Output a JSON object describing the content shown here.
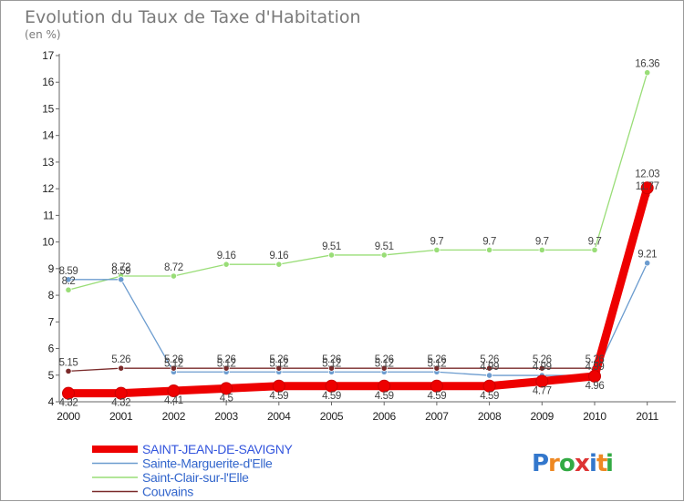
{
  "chart_data": {
    "type": "line",
    "title": "Evolution du Taux de Taxe d'Habitation",
    "subtitle": "(en %)",
    "xlabel": "",
    "ylabel": "",
    "x": [
      "2000",
      "2001",
      "2002",
      "2003",
      "2004",
      "2005",
      "2006",
      "2007",
      "2008",
      "2009",
      "2010",
      "2011"
    ],
    "ylim": [
      4,
      17
    ],
    "yticks": [
      "4",
      "5",
      "6",
      "7",
      "8",
      "9",
      "10",
      "11",
      "12",
      "13",
      "14",
      "15",
      "16",
      "17"
    ],
    "grid": false,
    "legend_position": "bottom-left",
    "series": [
      {
        "name": "SAINT-JEAN-DE-SAVIGNY",
        "color": "#ee0000",
        "values": [
          4.32,
          4.32,
          4.41,
          4.5,
          4.59,
          4.59,
          4.59,
          4.59,
          4.59,
          4.77,
          4.96,
          12.03
        ],
        "labels": [
          "4.32",
          "4.32",
          "4.41",
          "4.5",
          "4.59",
          "4.59",
          "4.59",
          "4.59",
          "4.59",
          "4.77",
          "4.96",
          "12.03"
        ]
      },
      {
        "name": "Sainte-Marguerite-d'Elle",
        "color": "#6c9ccf",
        "values": [
          8.59,
          8.59,
          5.12,
          5.12,
          5.12,
          5.12,
          5.12,
          5.12,
          4.99,
          4.99,
          4.99,
          9.21
        ],
        "labels": [
          "8.59",
          "8.59",
          "5.12",
          "5.12",
          "5.12",
          "5.12",
          "5.12",
          "5.12",
          "4.99",
          "4.99",
          "4.99",
          "9.21"
        ]
      },
      {
        "name": "Saint-Clair-sur-l'Elle",
        "color": "#99dd77",
        "values": [
          8.2,
          8.72,
          8.72,
          9.16,
          9.16,
          9.51,
          9.51,
          9.7,
          9.7,
          9.7,
          9.7,
          16.36
        ],
        "labels": [
          "8.2",
          "8.72",
          "8.72",
          "9.16",
          "9.16",
          "9.51",
          "9.51",
          "9.7",
          "9.7",
          "9.7",
          "9.7",
          "16.36"
        ]
      },
      {
        "name": "Couvains",
        "color": "#7a2a2a",
        "values": [
          5.15,
          5.26,
          5.26,
          5.26,
          5.26,
          5.26,
          5.26,
          5.26,
          5.26,
          5.26,
          5.26,
          11.77
        ],
        "labels": [
          "5.15",
          "5.26",
          "5.26",
          "5.26",
          "5.26",
          "5.26",
          "5.26",
          "5.26",
          "5.26",
          "5.26",
          "5.26",
          "11.77"
        ]
      }
    ]
  },
  "logo": {
    "letters": [
      "P",
      "r",
      "o",
      "x",
      "i",
      "t",
      "i"
    ],
    "colors": [
      "#3377cc",
      "#ee8822",
      "#33aa44",
      "#dd3333",
      "#3377cc",
      "#ee8822",
      "#33aa44"
    ]
  }
}
